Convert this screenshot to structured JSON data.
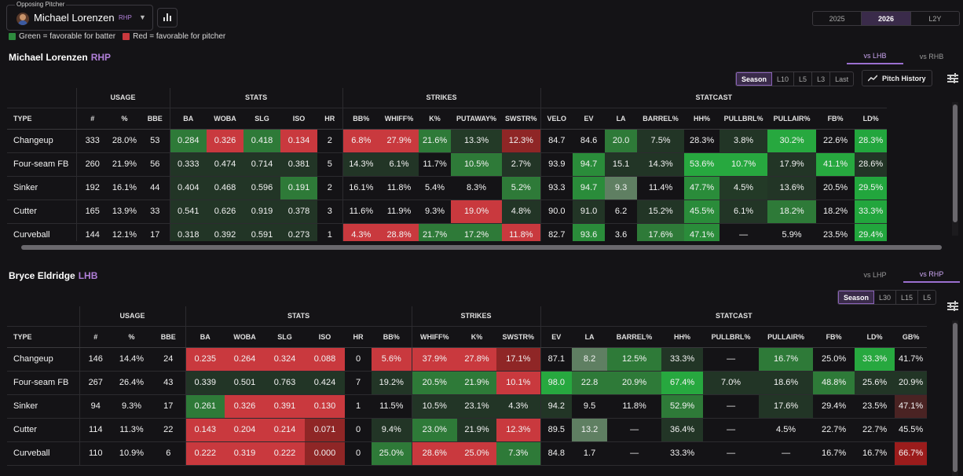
{
  "header": {
    "selector_label": "Opposing Pitcher",
    "pitcher_name": "Michael Lorenzen",
    "pitcher_hand": "RHP",
    "legend_green": "Green = favorable for batter",
    "legend_red": "Red = favorable for pitcher",
    "years": [
      "2025",
      "2026",
      "L2Y"
    ],
    "year_selected": "2026",
    "colors": {
      "accent": "#9b6fd0",
      "green": "#2e8b3e",
      "red": "#c9393e",
      "bg": "#141316"
    }
  },
  "pitcher": {
    "name": "Michael Lorenzen",
    "hand": "RHP",
    "tabs": [
      "vs LHB",
      "vs RHB"
    ],
    "tab_selected": "vs LHB",
    "filters": [
      "Season",
      "L10",
      "L5",
      "L3",
      "Last"
    ],
    "filter_selected": "Season",
    "history_label": "Pitch History",
    "groups": [
      {
        "label": "",
        "span": 1
      },
      {
        "label": "USAGE",
        "span": 3
      },
      {
        "label": "STATS",
        "span": 5
      },
      {
        "label": "STRIKES",
        "span": 5
      },
      {
        "label": "STATCAST",
        "span": 9
      }
    ],
    "columns": [
      "TYPE",
      "#",
      "%",
      "BBE",
      "BA",
      "WOBA",
      "SLG",
      "ISO",
      "HR",
      "BB%",
      "WHIFF%",
      "K%",
      "PUTAWAY%",
      "SWSTR%",
      "VELO",
      "EV",
      "LA",
      "BARREL%",
      "HH%",
      "PULLBRL%",
      "PULLAIR%",
      "FB%",
      "LD%"
    ],
    "rows": [
      [
        "Changeup",
        "333",
        "28.0%",
        "53",
        "0.284",
        "0.326",
        "0.418",
        "0.134",
        "2",
        "6.8%",
        "27.9%",
        "21.6%",
        "13.3%",
        "12.3%",
        "84.7",
        "84.6",
        "20.0",
        "7.5%",
        "28.3%",
        "3.8%",
        "30.2%",
        "22.6%",
        "28.3%"
      ],
      [
        "Four-seam FB",
        "260",
        "21.9%",
        "56",
        "0.333",
        "0.474",
        "0.714",
        "0.381",
        "5",
        "14.3%",
        "6.1%",
        "11.7%",
        "10.5%",
        "2.7%",
        "93.9",
        "94.7",
        "15.1",
        "14.3%",
        "53.6%",
        "10.7%",
        "17.9%",
        "41.1%",
        "28.6%"
      ],
      [
        "Sinker",
        "192",
        "16.1%",
        "44",
        "0.404",
        "0.468",
        "0.596",
        "0.191",
        "2",
        "16.1%",
        "11.8%",
        "5.4%",
        "8.3%",
        "5.2%",
        "93.3",
        "94.7",
        "9.3",
        "11.4%",
        "47.7%",
        "4.5%",
        "13.6%",
        "20.5%",
        "29.5%"
      ],
      [
        "Cutter",
        "165",
        "13.9%",
        "33",
        "0.541",
        "0.626",
        "0.919",
        "0.378",
        "3",
        "11.6%",
        "11.9%",
        "9.3%",
        "19.0%",
        "4.8%",
        "90.0",
        "91.0",
        "6.2",
        "15.2%",
        "45.5%",
        "6.1%",
        "18.2%",
        "18.2%",
        "33.3%"
      ],
      [
        "Curveball",
        "144",
        "12.1%",
        "17",
        "0.318",
        "0.392",
        "0.591",
        "0.273",
        "1",
        "4.3%",
        "28.8%",
        "21.7%",
        "17.2%",
        "11.8%",
        "82.7",
        "93.6",
        "3.6",
        "17.6%",
        "47.1%",
        "—",
        "5.9%",
        "23.5%",
        "29.4%"
      ]
    ],
    "colors": [
      [
        "",
        "",
        "",
        "",
        "#2e7a38",
        "#c9393e",
        "#2e7a38",
        "#c9393e",
        "",
        "#c9393e",
        "#c9393e",
        "#2e7a38",
        "#233a27",
        "#8f2626",
        "",
        "",
        "#2e7a38",
        "#223526",
        "",
        "#223526",
        "#27a83f",
        "",
        "#22a63d"
      ],
      [
        "",
        "",
        "",
        "",
        "#223526",
        "#223526",
        "#223526",
        "#223526",
        "",
        "#223526",
        "#223526",
        "",
        "#2e7a38",
        "#223526",
        "",
        "#2a8c3a",
        "#223526",
        "#223526",
        "#27a83f",
        "#27a83f",
        "#223526",
        "#27a83f",
        "#223526"
      ],
      [
        "",
        "",
        "",
        "",
        "#223526",
        "#223526",
        "#223526",
        "#2e7a38",
        "",
        "",
        "",
        "",
        "",
        "#2e7a38",
        "",
        "#2a8c3a",
        "#5f7f62",
        "",
        "#2a8c3a",
        "#233a27",
        "#223526",
        "",
        "#22a63d"
      ],
      [
        "",
        "",
        "",
        "",
        "#223526",
        "#223526",
        "#223526",
        "#223526",
        "",
        "",
        "",
        "",
        "#c9393e",
        "#223526",
        "",
        "#223526",
        "",
        "#223526",
        "#2a8c3a",
        "#223526",
        "#2e7a38",
        "",
        "#22a63d"
      ],
      [
        "",
        "",
        "",
        "",
        "#223526",
        "#223526",
        "#223526",
        "#223526",
        "",
        "#c9393e",
        "#c9393e",
        "#2e7a38",
        "#2e7a38",
        "#c9393e",
        "",
        "#2a8c3a",
        "",
        "#2e7a38",
        "#2a8c3a",
        "",
        "",
        "",
        "#22a63d"
      ]
    ]
  },
  "batter": {
    "name": "Bryce Eldridge",
    "hand": "LHB",
    "tabs": [
      "vs LHP",
      "vs RHP"
    ],
    "tab_selected": "vs RHP",
    "filters": [
      "Season",
      "L30",
      "L15",
      "L5"
    ],
    "filter_selected": "Season",
    "groups": [
      {
        "label": "",
        "span": 1
      },
      {
        "label": "USAGE",
        "span": 3
      },
      {
        "label": "STATS",
        "span": 6
      },
      {
        "label": "STRIKES",
        "span": 3
      },
      {
        "label": "STATCAST",
        "span": 9
      }
    ],
    "columns": [
      "TYPE",
      "#",
      "%",
      "BBE",
      "BA",
      "WOBA",
      "SLG",
      "ISO",
      "HR",
      "BB%",
      "WHIFF%",
      "K%",
      "SWSTR%",
      "EV",
      "LA",
      "BARREL%",
      "HH%",
      "PULLBRL%",
      "PULLAIR%",
      "FB%",
      "LD%",
      "GB%"
    ],
    "rows": [
      [
        "Changeup",
        "146",
        "14.4%",
        "24",
        "0.235",
        "0.264",
        "0.324",
        "0.088",
        "0",
        "5.6%",
        "37.9%",
        "27.8%",
        "17.1%",
        "87.1",
        "8.2",
        "12.5%",
        "33.3%",
        "—",
        "16.7%",
        "25.0%",
        "33.3%",
        "41.7%"
      ],
      [
        "Four-seam FB",
        "267",
        "26.4%",
        "43",
        "0.339",
        "0.501",
        "0.763",
        "0.424",
        "7",
        "19.2%",
        "20.5%",
        "21.9%",
        "10.1%",
        "98.0",
        "22.8",
        "20.9%",
        "67.4%",
        "7.0%",
        "18.6%",
        "48.8%",
        "25.6%",
        "20.9%"
      ],
      [
        "Sinker",
        "94",
        "9.3%",
        "17",
        "0.261",
        "0.326",
        "0.391",
        "0.130",
        "1",
        "11.5%",
        "10.5%",
        "23.1%",
        "4.3%",
        "94.2",
        "9.5",
        "11.8%",
        "52.9%",
        "—",
        "17.6%",
        "29.4%",
        "23.5%",
        "47.1%"
      ],
      [
        "Cutter",
        "114",
        "11.3%",
        "22",
        "0.143",
        "0.204",
        "0.214",
        "0.071",
        "0",
        "9.4%",
        "23.0%",
        "21.9%",
        "12.3%",
        "89.5",
        "13.2",
        "—",
        "36.4%",
        "—",
        "4.5%",
        "22.7%",
        "22.7%",
        "45.5%"
      ],
      [
        "Curveball",
        "110",
        "10.9%",
        "6",
        "0.222",
        "0.319",
        "0.222",
        "0.000",
        "0",
        "25.0%",
        "28.6%",
        "25.0%",
        "7.3%",
        "84.8",
        "1.7",
        "—",
        "33.3%",
        "—",
        "—",
        "16.7%",
        "16.7%",
        "66.7%"
      ]
    ],
    "colors": [
      [
        "",
        "",
        "",
        "",
        "#c9393e",
        "#c9393e",
        "#c9393e",
        "#c9393e",
        "",
        "#c9393e",
        "#c9393e",
        "#c9393e",
        "#8f2626",
        "",
        "#5f7f62",
        "#2e7a38",
        "#223526",
        "",
        "#2e7a38",
        "",
        "#27a83f",
        ""
      ],
      [
        "",
        "",
        "",
        "",
        "#223526",
        "#223526",
        "#223526",
        "#223526",
        "",
        "#223526",
        "#2e7a38",
        "#2e7a38",
        "#c9393e",
        "#27a83f",
        "#2e7a38",
        "#2e7a38",
        "#27a83f",
        "#223526",
        "#223526",
        "#2e7a38",
        "#223526",
        "#223526"
      ],
      [
        "",
        "",
        "",
        "",
        "#2e7a38",
        "#c9393e",
        "#c9393e",
        "#c9393e",
        "",
        "",
        "#223526",
        "#223526",
        "#223526",
        "#223526",
        "",
        "",
        "#2e7a38",
        "",
        "#223526",
        "",
        "",
        "#4a2323"
      ],
      [
        "",
        "",
        "",
        "",
        "#c9393e",
        "#c9393e",
        "#c9393e",
        "#8f2626",
        "",
        "#223526",
        "#2e7a38",
        "#223526",
        "#c9393e",
        "",
        "#5f7f62",
        "",
        "#223526",
        "",
        "",
        "",
        "",
        ""
      ],
      [
        "",
        "",
        "",
        "",
        "#c9393e",
        "#c9393e",
        "#c9393e",
        "#8f2626",
        "",
        "#2e7a38",
        "#c9393e",
        "#c9393e",
        "#2e7a38",
        "",
        "",
        "",
        "",
        "",
        "",
        "",
        "",
        "#9b1c1c"
      ]
    ]
  }
}
